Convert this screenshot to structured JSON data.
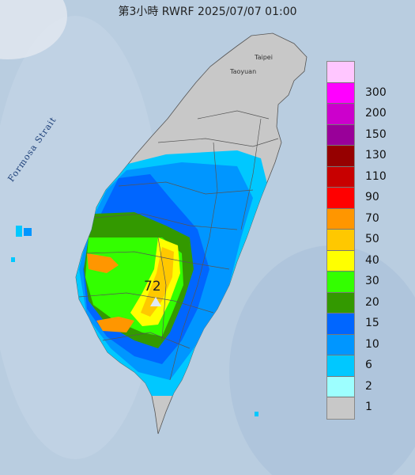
{
  "title": "第3小時  RWRF 2025/07/07 01:00",
  "map": {
    "strait_label": "Formosa Strait",
    "city_labels": [
      "Taipei",
      "Taoyuan"
    ],
    "peak_value": "72",
    "peak_marker": "triangle-marker"
  },
  "legend": {
    "items": [
      {
        "label": "300",
        "color": "#ffc6ff"
      },
      {
        "label": "200",
        "color": "#ff00ff"
      },
      {
        "label": "150",
        "color": "#cc00cc"
      },
      {
        "label": "130",
        "color": "#990099"
      },
      {
        "label": "110",
        "color": "#960000"
      },
      {
        "label": "90",
        "color": "#c80000"
      },
      {
        "label": "70",
        "color": "#ff0000"
      },
      {
        "label": "50",
        "color": "#ff9600"
      },
      {
        "label": "40",
        "color": "#ffc800"
      },
      {
        "label": "30",
        "color": "#ffff00"
      },
      {
        "label": "20",
        "color": "#33ff00"
      },
      {
        "label": "15",
        "color": "#339900"
      },
      {
        "label": "10",
        "color": "#0066ff"
      },
      {
        "label": "6",
        "color": "#0096ff"
      },
      {
        "label": "2",
        "color": "#00c8ff"
      },
      {
        "label": "1",
        "color": "#9dffff"
      },
      {
        "label": "",
        "color": "#c8c8c8"
      }
    ]
  }
}
